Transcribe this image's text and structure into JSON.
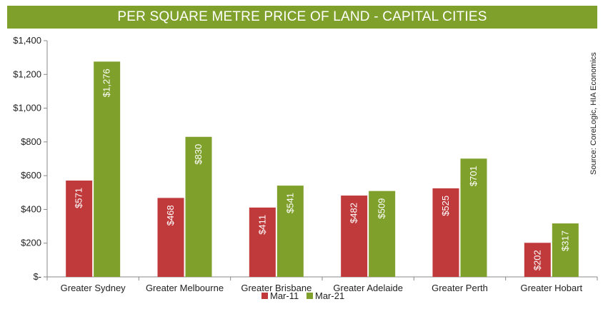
{
  "chart_data": {
    "type": "bar",
    "title": "PER SQUARE METRE PRICE OF LAND - CAPITAL CITIES",
    "source": "Source: CoreLogic, HIA Economics",
    "categories": [
      "Greater Sydney",
      "Greater Melbourne",
      "Greater Brisbane",
      "Greater Adelaide",
      "Greater Perth",
      "Greater Hobart"
    ],
    "series": [
      {
        "name": "Mar-11",
        "color": "#c0393b",
        "values": [
          571,
          468,
          411,
          482,
          525,
          202
        ],
        "labels": [
          "$571",
          "$468",
          "$411",
          "$482",
          "$525",
          "$202"
        ]
      },
      {
        "name": "Mar-21",
        "color": "#7fa12c",
        "values": [
          1276,
          830,
          541,
          509,
          701,
          317
        ],
        "labels": [
          "$1,276",
          "$830",
          "$541",
          "$509",
          "$701",
          "$317"
        ]
      }
    ],
    "ylim": [
      0,
      1400
    ],
    "yticks": [
      0,
      200,
      400,
      600,
      800,
      1000,
      1200,
      1400
    ],
    "ytick_labels": [
      "$-",
      "$200",
      "$400",
      "$600",
      "$800",
      "$1,000",
      "$1,200",
      "$1,400"
    ],
    "title_bar_color": "#7fa12c",
    "grid": false,
    "legend": "bottom"
  }
}
